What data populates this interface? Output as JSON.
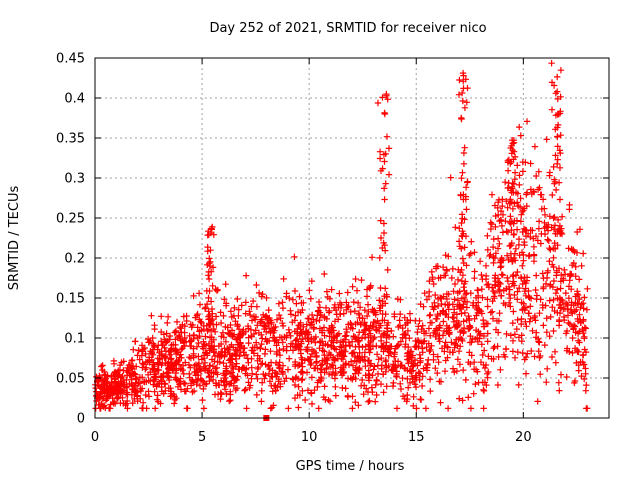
{
  "chart_data": {
    "type": "scatter",
    "title": "Day 252 of 2021, SRMTID for receiver nico",
    "xlabel": "GPS time / hours",
    "ylabel": "SRMTID / TECUs",
    "xlim": [
      0,
      24
    ],
    "ylim": [
      0,
      0.45
    ],
    "xticks": [
      0,
      5,
      10,
      15,
      20
    ],
    "xtick_labels": [
      "0",
      "5",
      "10",
      "15",
      "20"
    ],
    "yticks": [
      0,
      0.05,
      0.1,
      0.15,
      0.2,
      0.25,
      0.3,
      0.35,
      0.4,
      0.45
    ],
    "ytick_labels": [
      "0",
      "0.05",
      "0.1",
      "0.15",
      "0.2",
      "0.25",
      "0.3",
      "0.35",
      "0.4",
      "0.45"
    ],
    "grid": true,
    "marker": "+",
    "color": "#ff0000",
    "point_count_approx": 2400,
    "x_range_of_data": [
      0,
      23
    ],
    "baseline_trend": [
      {
        "x": 0,
        "y": 0.03
      },
      {
        "x": 1,
        "y": 0.04
      },
      {
        "x": 2,
        "y": 0.05
      },
      {
        "x": 3,
        "y": 0.065
      },
      {
        "x": 4,
        "y": 0.075
      },
      {
        "x": 5,
        "y": 0.08
      },
      {
        "x": 6,
        "y": 0.08
      },
      {
        "x": 7,
        "y": 0.085
      },
      {
        "x": 8,
        "y": 0.085
      },
      {
        "x": 9,
        "y": 0.085
      },
      {
        "x": 10,
        "y": 0.09
      },
      {
        "x": 11,
        "y": 0.09
      },
      {
        "x": 12,
        "y": 0.085
      },
      {
        "x": 13,
        "y": 0.09
      },
      {
        "x": 14,
        "y": 0.075
      },
      {
        "x": 15,
        "y": 0.08
      },
      {
        "x": 16,
        "y": 0.11
      },
      {
        "x": 17,
        "y": 0.13
      },
      {
        "x": 18,
        "y": 0.12
      },
      {
        "x": 19,
        "y": 0.17
      },
      {
        "x": 20,
        "y": 0.19
      },
      {
        "x": 21,
        "y": 0.19
      },
      {
        "x": 22,
        "y": 0.15
      },
      {
        "x": 23,
        "y": 0.1
      }
    ],
    "spikes": [
      {
        "x": 5.4,
        "y_max": 0.24
      },
      {
        "x": 13.5,
        "y_max": 0.41
      },
      {
        "x": 17.2,
        "y_max": 0.435
      },
      {
        "x": 19.5,
        "y_max": 0.35
      },
      {
        "x": 21.6,
        "y_max": 0.44
      }
    ],
    "outliers": [
      {
        "x": 8.0,
        "y": 0.0
      }
    ]
  }
}
